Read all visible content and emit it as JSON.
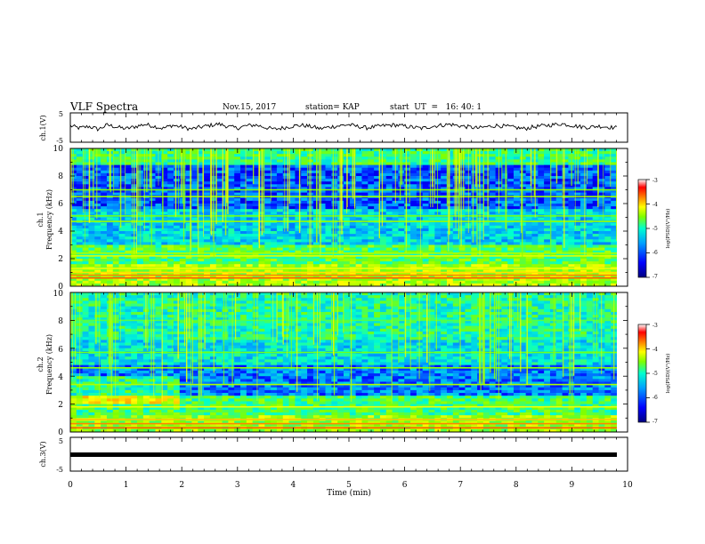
{
  "header": {
    "title": "VLF Spectra",
    "date": "Nov.15, 2017",
    "station": "station= KAP",
    "start": "start  UT  =   16: 40: 1"
  },
  "chart_data": [
    {
      "type": "line",
      "panel": "waveform-ch1",
      "ylabel": "ch.1(V)",
      "ylim": [
        -5,
        5
      ],
      "yticks": [
        "5",
        "-5"
      ],
      "series": [
        {
          "values": [
            0.6,
            -0.2,
            0.4,
            -0.6,
            0.9,
            0.2,
            -0.4,
            0.3,
            1.1,
            0.5,
            -0.3,
            0.8,
            0.2,
            -0.5,
            0.1,
            0.7,
            1.2,
            0.4,
            -0.2,
            0.6,
            0.9,
            0.1,
            -0.6,
            -0.1,
            0.5,
            0.8,
            0.3,
            -0.4,
            0.2,
            0.6,
            1.0,
            0.4,
            -0.1,
            0.3,
            0.7,
            0.9,
            0.5,
            0.1,
            -0.3,
            0.4,
            0.8,
            1.1,
            0.6,
            0.2,
            -0.2,
            0.3,
            0.7,
            0.4,
            0.0,
            -0.4,
            0.2,
            0.6,
            0.9,
            1.3,
            0.8,
            0.3,
            0.1,
            0.5,
            0.2,
            -0.1
          ]
        }
      ]
    },
    {
      "type": "heatmap",
      "panel": "spectrogram-ch1",
      "ylabel_top": "ch.1",
      "ylabel": "Frequency (kHz)",
      "ylim": [
        0,
        10
      ],
      "yticks": [
        "0",
        "2",
        "4",
        "6",
        "8",
        "10"
      ],
      "colorbar": {
        "label": "log(PSD)(V²/Hz)",
        "ticks": [
          "-3",
          "-4",
          "-5",
          "-6",
          "-7"
        ]
      }
    },
    {
      "type": "heatmap",
      "panel": "spectrogram-ch2",
      "ylabel_top": "ch.2",
      "ylabel": "Frequency (kHz)",
      "ylim": [
        0,
        10
      ],
      "yticks": [
        "0",
        "2",
        "4",
        "6",
        "8",
        "10"
      ],
      "colorbar": {
        "label": "log(PSD)(V²/Hz)",
        "ticks": [
          "-3",
          "-4",
          "-5",
          "-6",
          "-7"
        ]
      }
    },
    {
      "type": "line",
      "panel": "waveform-ch3",
      "ylabel": "ch.3(V)",
      "ylim": [
        -5,
        5
      ],
      "yticks": [
        "5",
        "-5"
      ],
      "series": [
        {
          "values": [
            -1.5,
            -1.5
          ]
        }
      ]
    }
  ],
  "xaxis": {
    "label": "Time (min)",
    "xlim": [
      0,
      10
    ],
    "ticks": [
      "0",
      "1",
      "2",
      "3",
      "4",
      "5",
      "6",
      "7",
      "8",
      "9",
      "10"
    ]
  },
  "colors": {
    "axis": "#000000",
    "colormap": [
      "#00007f",
      "#0000ff",
      "#00a0ff",
      "#00ffd0",
      "#7fff00",
      "#ffff00",
      "#ff8000",
      "#ff0000",
      "#ffffff"
    ]
  }
}
